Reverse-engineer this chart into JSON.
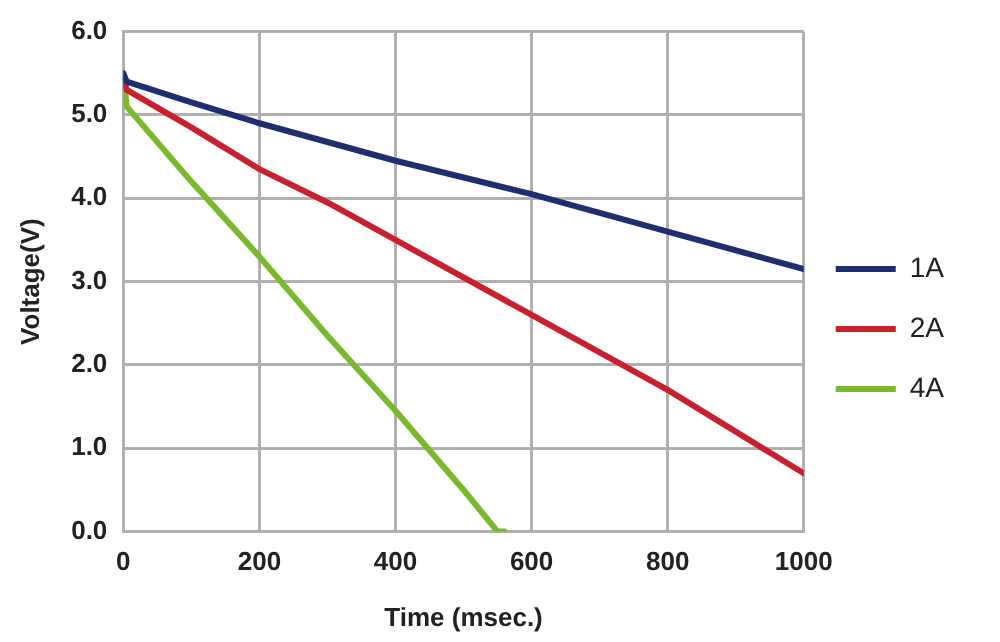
{
  "chart_data": {
    "type": "line",
    "xlabel": "Time (msec.)",
    "ylabel": "Voltage(V)",
    "xlim": [
      0,
      1000
    ],
    "xticks": [
      0,
      200,
      400,
      600,
      800,
      1000
    ],
    "ylim": [
      0,
      6
    ],
    "yticks": [
      {
        "value": 0,
        "label": "0.0"
      },
      {
        "value": 1,
        "label": "1.0"
      },
      {
        "value": 2,
        "label": "2.0"
      },
      {
        "value": 3,
        "label": "3.0"
      },
      {
        "value": 4,
        "label": "4.0"
      },
      {
        "value": 5,
        "label": "5.0"
      },
      {
        "value": 6,
        "label": "6.0"
      }
    ],
    "grid": true,
    "legend": "right",
    "marker": "none",
    "line_style": "solid",
    "series": [
      {
        "name": "1A",
        "color": "#1f2f6e",
        "x": [
          0,
          5,
          100,
          200,
          400,
          600,
          800,
          1000
        ],
        "values": [
          5.5,
          5.4,
          5.15,
          4.9,
          4.45,
          4.05,
          3.6,
          3.15
        ]
      },
      {
        "name": "2A",
        "color": "#c8202f",
        "x": [
          0,
          5,
          100,
          200,
          300,
          400,
          600,
          800,
          1000
        ],
        "values": [
          5.45,
          5.3,
          4.85,
          4.35,
          3.95,
          3.5,
          2.6,
          1.7,
          0.7
        ]
      },
      {
        "name": "4A",
        "color": "#7ab82e",
        "x": [
          0,
          5,
          100,
          200,
          300,
          400,
          500,
          550,
          560
        ],
        "values": [
          5.5,
          5.1,
          4.2,
          3.3,
          2.35,
          1.45,
          0.5,
          0,
          0
        ]
      }
    ]
  }
}
